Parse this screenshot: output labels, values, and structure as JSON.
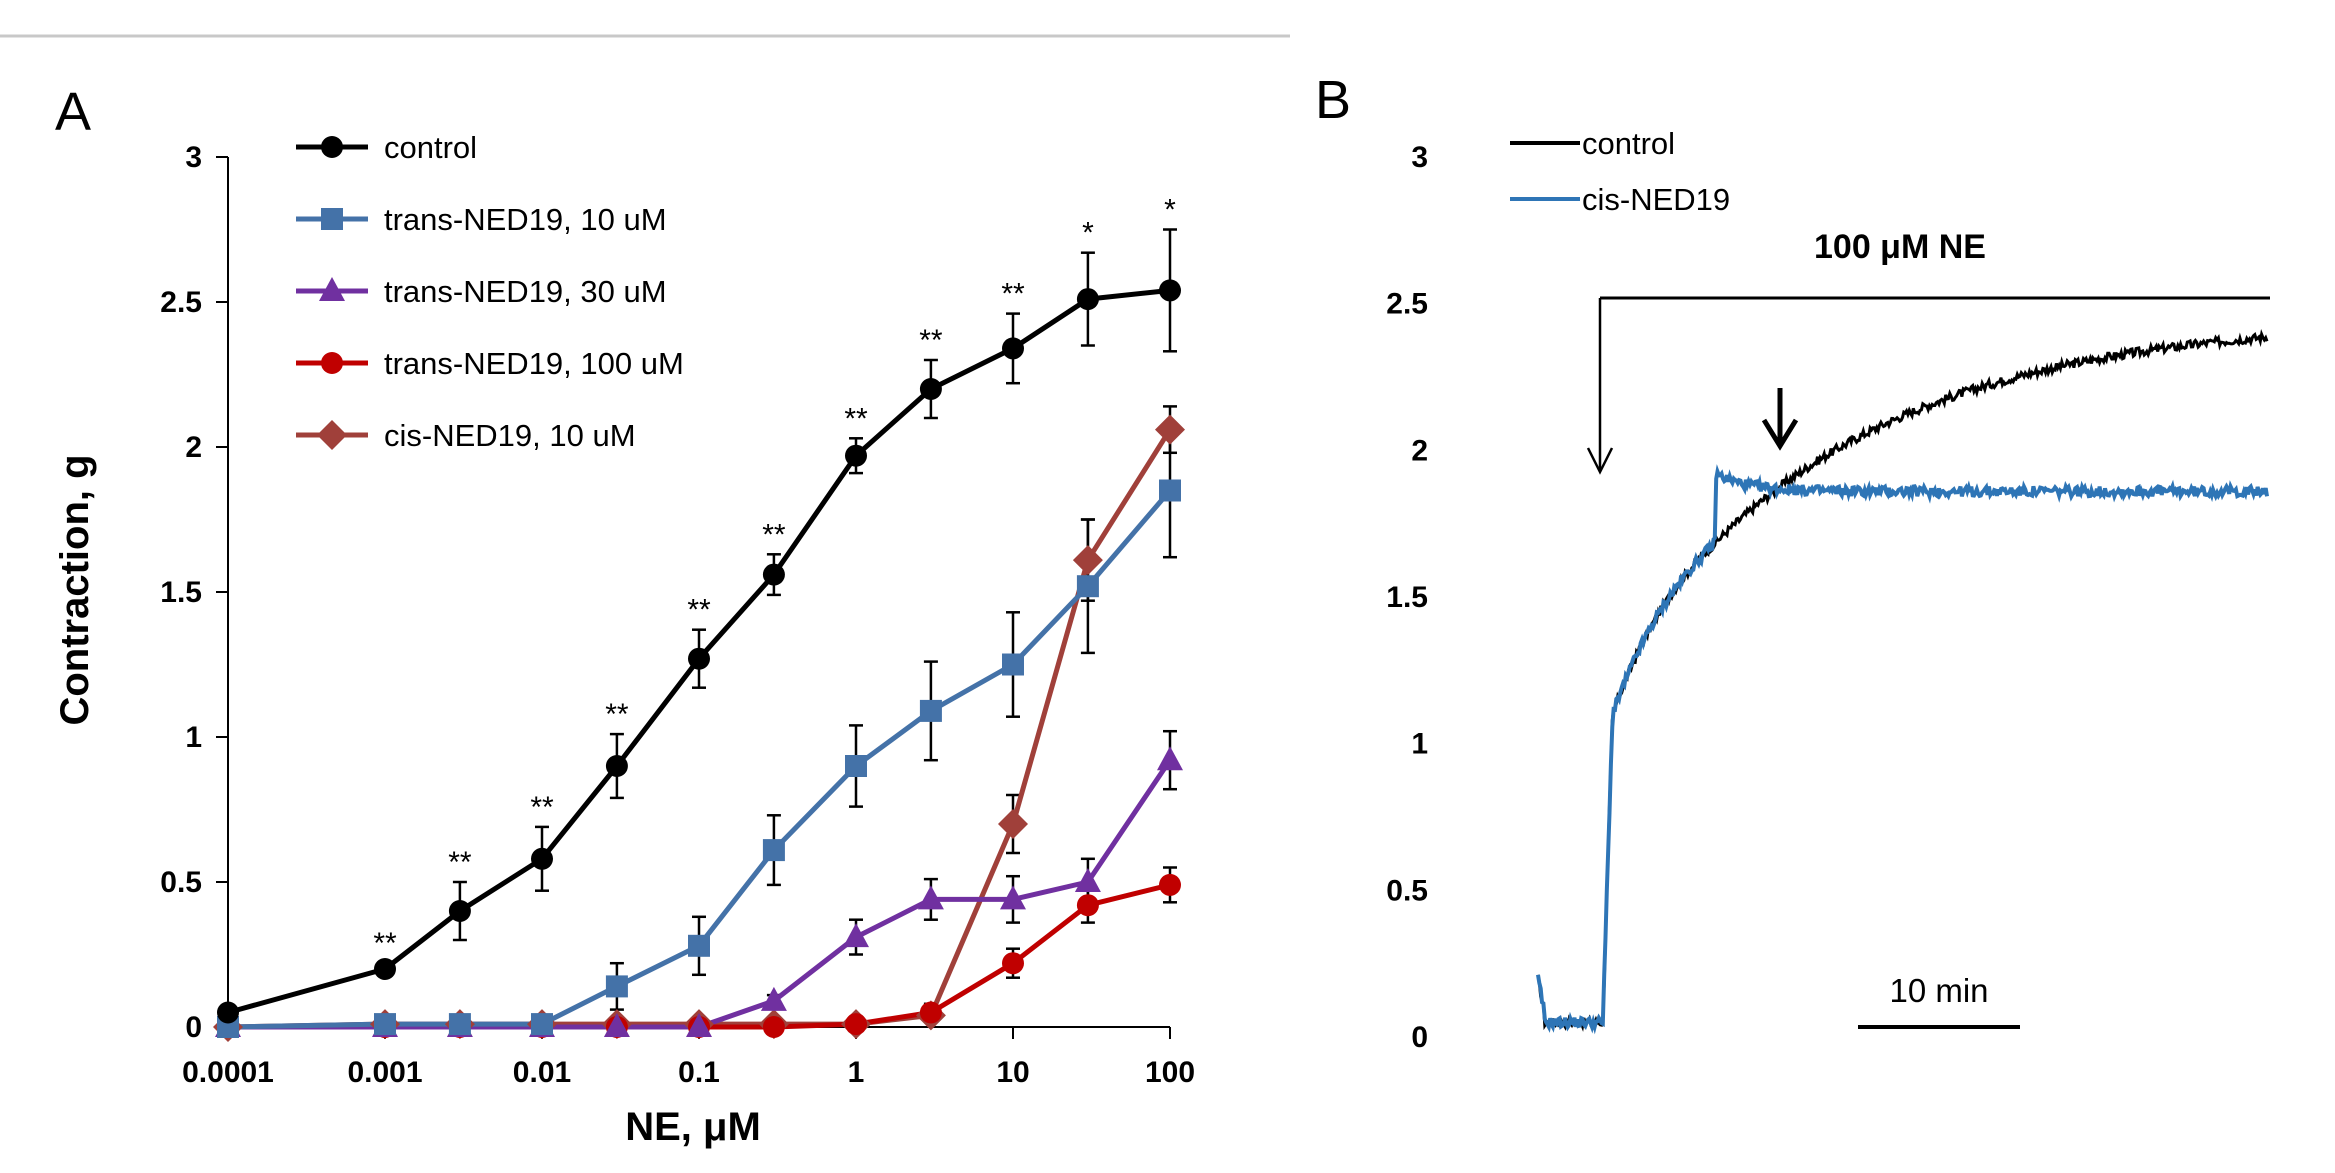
{
  "chart_data": [
    {
      "panel": "A",
      "type": "line",
      "xscale": "log",
      "xlabel": "NE, μM",
      "ylabel": "Contraction, g",
      "ylim": [
        0,
        3
      ],
      "yticks": [
        "0",
        "0.5",
        "1",
        "1.5",
        "2",
        "2.5",
        "3"
      ],
      "xticks": [
        "0.0001",
        "0.001",
        "0.01",
        "0.1",
        "1",
        "10",
        "100"
      ],
      "x": [
        0.0001,
        0.001,
        0.003,
        0.01,
        0.03,
        0.1,
        0.3,
        1,
        3,
        10,
        30,
        100
      ],
      "series": [
        {
          "name": "control",
          "color": "#000000",
          "marker": "circle",
          "values": [
            0.05,
            0.2,
            0.4,
            0.58,
            0.9,
            1.27,
            1.56,
            1.97,
            2.2,
            2.34,
            2.51,
            2.54
          ],
          "errors": [
            0.01,
            0.02,
            0.1,
            0.11,
            0.11,
            0.1,
            0.07,
            0.06,
            0.1,
            0.12,
            0.16,
            0.21
          ],
          "stars": [
            "",
            "**",
            "**",
            "**",
            "**",
            "**",
            "**",
            "**",
            "**",
            "**",
            "*",
            "*"
          ]
        },
        {
          "name": "trans-NED19, 10 uM",
          "color": "#4472A8",
          "marker": "square",
          "values": [
            0,
            0.01,
            0.01,
            0.01,
            0.14,
            0.28,
            0.61,
            0.9,
            1.09,
            1.25,
            1.52,
            1.85
          ],
          "errors": [
            0,
            0,
            0,
            0,
            0.08,
            0.1,
            0.12,
            0.14,
            0.17,
            0.18,
            0.23,
            0.23
          ]
        },
        {
          "name": "trans-NED19, 30 uM",
          "color": "#7030A0",
          "marker": "triangle",
          "values": [
            0,
            0,
            0,
            0,
            0,
            0,
            0.09,
            0.31,
            0.44,
            0.44,
            0.5,
            0.92
          ],
          "errors": [
            0,
            0,
            0,
            0,
            0,
            0,
            0.02,
            0.06,
            0.07,
            0.08,
            0.08,
            0.1
          ]
        },
        {
          "name": "trans-NED19, 100 uM",
          "color": "#C00000",
          "marker": "circle",
          "values": [
            0,
            0,
            0,
            0,
            0,
            0,
            0,
            0.01,
            0.05,
            0.22,
            0.42,
            0.49
          ],
          "errors": [
            0,
            0,
            0,
            0,
            0,
            0,
            0,
            0,
            0.03,
            0.05,
            0.06,
            0.06
          ]
        },
        {
          "name": "cis-NED19, 10 uM",
          "color": "#A0403A",
          "marker": "diamond",
          "values": [
            0,
            0.01,
            0.01,
            0.01,
            0.01,
            0.01,
            0.01,
            0.01,
            0.04,
            0.7,
            1.61,
            2.06
          ],
          "errors": [
            0,
            0,
            0,
            0,
            0,
            0,
            0,
            0,
            0,
            0.1,
            0.14,
            0.08
          ]
        }
      ]
    },
    {
      "panel": "B",
      "type": "line",
      "ylim": [
        0,
        3
      ],
      "yticks": [
        "0",
        "0.5",
        "1",
        "1.5",
        "2",
        "2.5",
        "3"
      ],
      "series": [
        {
          "name": "control",
          "color": "#000000"
        },
        {
          "name": "cis-NED19",
          "color": "#2E75B6"
        }
      ],
      "annotation": "100 μM NE",
      "scalebar_label": "10 min"
    }
  ],
  "panel_labels": {
    "a": "A",
    "b": "B"
  }
}
